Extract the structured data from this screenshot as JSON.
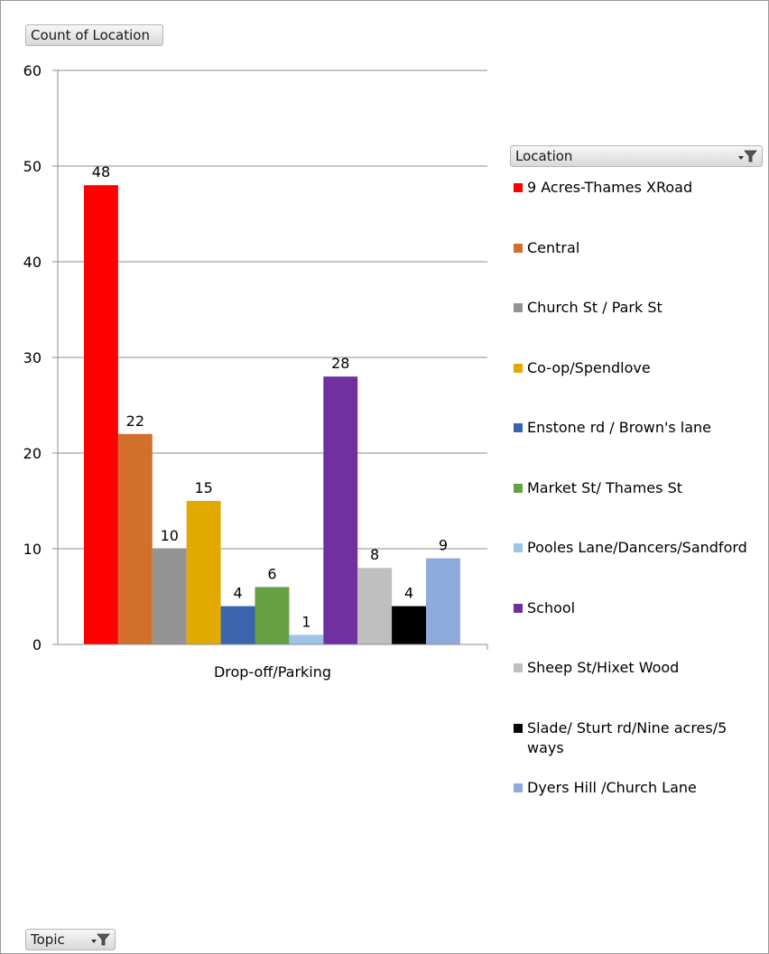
{
  "field_buttons": {
    "values": "Count of Location",
    "legend": "Location",
    "axis": "Topic"
  },
  "icons": {
    "legend_filter": "filter-dropdown-icon",
    "axis_filter": "filter-dropdown-icon"
  },
  "chart_data": {
    "type": "bar",
    "categories": [
      "Drop-off/Parking"
    ],
    "ylim": [
      0,
      60
    ],
    "yticks": [
      "0",
      "10",
      "20",
      "30",
      "40",
      "50",
      "60"
    ],
    "grid": true,
    "legend_position": "right",
    "series": [
      {
        "name": "9 Acres-Thames XRoad",
        "values": [
          48
        ],
        "color": "#ff0000"
      },
      {
        "name": "Central",
        "values": [
          22
        ],
        "color": "#d36f2c"
      },
      {
        "name": "Church St / Park St",
        "values": [
          10
        ],
        "color": "#939393"
      },
      {
        "name": "Co-op/Spendlove",
        "values": [
          15
        ],
        "color": "#e2a900"
      },
      {
        "name": "Enstone rd / Brown's lane",
        "values": [
          4
        ],
        "color": "#3a65ae"
      },
      {
        "name": "Market St/ Thames St",
        "values": [
          6
        ],
        "color": "#66a043"
      },
      {
        "name": "Pooles Lane/Dancers/Sandford",
        "values": [
          1
        ],
        "color": "#9dc3e6"
      },
      {
        "name": "School",
        "values": [
          28
        ],
        "color": "#7030a0"
      },
      {
        "name": "Sheep St/Hixet Wood",
        "values": [
          8
        ],
        "color": "#bfbfbf"
      },
      {
        "name": "Slade/ Sturt rd/Nine acres/5 ways",
        "values": [
          4
        ],
        "color": "#000000"
      },
      {
        "name": "Dyers Hill /Church Lane",
        "values": [
          9
        ],
        "color": "#8faadc"
      }
    ]
  }
}
